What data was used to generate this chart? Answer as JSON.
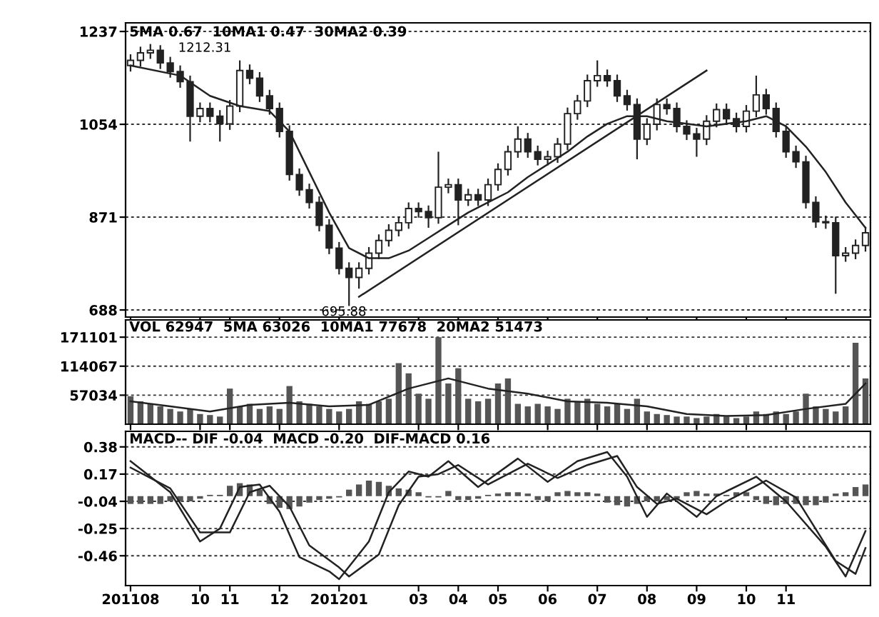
{
  "chart_data": [
    {
      "type": "candlestick",
      "color": "#222222",
      "categories": [
        "201108",
        null,
        null,
        null,
        null,
        null,
        null,
        "10",
        null,
        null,
        "11",
        null,
        null,
        null,
        null,
        "12",
        null,
        null,
        null,
        null,
        null,
        "201201",
        null,
        null,
        null,
        null,
        null,
        null,
        null,
        "03",
        null,
        null,
        null,
        "04",
        null,
        null,
        null,
        "05",
        null,
        null,
        null,
        null,
        "06",
        null,
        null,
        null,
        null,
        "07",
        null,
        null,
        null,
        null,
        "08",
        null,
        null,
        null,
        null,
        "09",
        null,
        null,
        null,
        null,
        "10",
        null,
        null,
        null,
        "11",
        null,
        null,
        null,
        null,
        null,
        null,
        null,
        null
      ],
      "ohlc": [
        [
          1170,
          1192,
          1158,
          1180
        ],
        [
          1180,
          1207,
          1168,
          1195
        ],
        [
          1195,
          1212.31,
          1183,
          1200
        ],
        [
          1200,
          1210,
          1163,
          1175
        ],
        [
          1175,
          1187,
          1146,
          1158
        ],
        [
          1158,
          1170,
          1126,
          1138
        ],
        [
          1138,
          1150,
          1020,
          1070
        ],
        [
          1070,
          1097,
          1058,
          1085
        ],
        [
          1085,
          1097,
          1058,
          1070
        ],
        [
          1070,
          1082,
          1020,
          1055
        ],
        [
          1055,
          1102,
          1043,
          1090
        ],
        [
          1090,
          1180,
          1078,
          1160
        ],
        [
          1160,
          1172,
          1133,
          1145
        ],
        [
          1145,
          1157,
          1098,
          1110
        ],
        [
          1110,
          1122,
          1073,
          1085
        ],
        [
          1085,
          1097,
          1028,
          1040
        ],
        [
          1040,
          1052,
          943,
          955
        ],
        [
          955,
          967,
          913,
          925
        ],
        [
          925,
          937,
          888,
          900
        ],
        [
          900,
          912,
          843,
          855
        ],
        [
          855,
          867,
          798,
          810
        ],
        [
          810,
          822,
          758,
          770
        ],
        [
          770,
          782,
          695.88,
          752
        ],
        [
          752,
          782,
          730,
          770
        ],
        [
          770,
          812,
          758,
          800
        ],
        [
          800,
          837,
          788,
          825
        ],
        [
          825,
          857,
          813,
          845
        ],
        [
          845,
          872,
          833,
          860
        ],
        [
          860,
          900,
          848,
          888
        ],
        [
          888,
          900,
          870,
          882
        ],
        [
          882,
          894,
          850,
          870
        ],
        [
          870,
          1000,
          858,
          930
        ],
        [
          930,
          947,
          918,
          935
        ],
        [
          935,
          947,
          855,
          905
        ],
        [
          905,
          927,
          893,
          915
        ],
        [
          915,
          927,
          893,
          905
        ],
        [
          905,
          947,
          893,
          935
        ],
        [
          935,
          977,
          923,
          965
        ],
        [
          965,
          1012,
          953,
          1000
        ],
        [
          1000,
          1050,
          988,
          1025
        ],
        [
          1025,
          1037,
          988,
          1000
        ],
        [
          1000,
          1012,
          973,
          985
        ],
        [
          985,
          1002,
          973,
          990
        ],
        [
          990,
          1027,
          978,
          1015
        ],
        [
          1015,
          1087,
          1003,
          1075
        ],
        [
          1075,
          1112,
          1063,
          1100
        ],
        [
          1100,
          1152,
          1088,
          1140
        ],
        [
          1140,
          1180,
          1128,
          1150
        ],
        [
          1150,
          1162,
          1128,
          1140
        ],
        [
          1140,
          1152,
          1098,
          1110
        ],
        [
          1110,
          1122,
          1081,
          1093
        ],
        [
          1093,
          1105,
          985,
          1025
        ],
        [
          1025,
          1066,
          1013,
          1054
        ],
        [
          1054,
          1105,
          1042,
          1093
        ],
        [
          1093,
          1105,
          1073,
          1085
        ],
        [
          1085,
          1097,
          1038,
          1050
        ],
        [
          1050,
          1062,
          1023,
          1035
        ],
        [
          1035,
          1047,
          990,
          1025
        ],
        [
          1025,
          1072,
          1013,
          1060
        ],
        [
          1060,
          1095,
          1048,
          1083
        ],
        [
          1083,
          1095,
          1053,
          1065
        ],
        [
          1065,
          1077,
          1038,
          1050
        ],
        [
          1050,
          1092,
          1038,
          1080
        ],
        [
          1080,
          1150,
          1068,
          1112
        ],
        [
          1112,
          1124,
          1073,
          1085
        ],
        [
          1085,
          1097,
          1028,
          1040
        ],
        [
          1040,
          1052,
          988,
          1000
        ],
        [
          1000,
          1012,
          968,
          980
        ],
        [
          980,
          992,
          888,
          900
        ],
        [
          900,
          912,
          850,
          862
        ],
        [
          862,
          874,
          848,
          860
        ],
        [
          860,
          872,
          720,
          795
        ],
        [
          795,
          812,
          783,
          800
        ],
        [
          800,
          827,
          788,
          815
        ],
        [
          815,
          852,
          803,
          840
        ]
      ],
      "series": [
        {
          "type": "line",
          "color": "#222222",
          "values": [
            1170,
            null,
            null,
            null,
            null,
            1150,
            null,
            null,
            1110,
            null,
            null,
            1090,
            null,
            null,
            1080,
            null,
            1040,
            null,
            960,
            null,
            880,
            null,
            810,
            null,
            790,
            null,
            790,
            null,
            805,
            null,
            830,
            null,
            855,
            null,
            880,
            null,
            900,
            null,
            920,
            null,
            950,
            null,
            975,
            null,
            1000,
            null,
            1030,
            null,
            1055,
            null,
            1070,
            null,
            1070,
            null,
            1060,
            null,
            1055,
            null,
            1050,
            null,
            1055,
            null,
            1060,
            null,
            1070,
            null,
            1050,
            null,
            1010,
            null,
            960,
            null,
            900,
            null,
            850
          ]
        },
        {
          "type": "line",
          "color": "#222222",
          "values": [
            null,
            null,
            null,
            null,
            null,
            null,
            null,
            null,
            null,
            null,
            null,
            null,
            null,
            null,
            null,
            null,
            null,
            null,
            null,
            null,
            null,
            null,
            null,
            714,
            null,
            null,
            null,
            null,
            null,
            null,
            null,
            null,
            null,
            null,
            null,
            null,
            null,
            null,
            null,
            null,
            null,
            null,
            null,
            null,
            null,
            null,
            null,
            null,
            null,
            null,
            null,
            null,
            null,
            null,
            null,
            null,
            null,
            null,
            1160,
            null,
            null,
            null,
            null,
            null,
            null,
            null,
            null,
            null,
            null,
            null,
            null,
            null,
            null,
            null,
            null
          ]
        }
      ],
      "ylim": [
        674,
        1254
      ],
      "yticks": [
        688,
        871,
        1054,
        1237
      ],
      "grid": "y",
      "tick_labels": "y",
      "annotations": [
        "5MA 0.67  10MA1 0.47  30MA2 0.39",
        "1212.31",
        "695.88"
      ]
    },
    {
      "type": "bar",
      "color": "#555555",
      "categories": [
        "201108",
        null,
        null,
        null,
        null,
        null,
        null,
        "10",
        null,
        null,
        "11",
        null,
        null,
        null,
        null,
        "12",
        null,
        null,
        null,
        null,
        null,
        "201201",
        null,
        null,
        null,
        null,
        null,
        null,
        null,
        "03",
        null,
        null,
        null,
        "04",
        null,
        null,
        null,
        "05",
        null,
        null,
        null,
        null,
        "06",
        null,
        null,
        null,
        null,
        "07",
        null,
        null,
        null,
        null,
        "08",
        null,
        null,
        null,
        null,
        "09",
        null,
        null,
        null,
        null,
        "10",
        null,
        null,
        null,
        "11",
        null,
        null,
        null,
        null,
        null,
        null,
        null,
        null
      ],
      "values": [
        55000,
        45000,
        40000,
        35000,
        30000,
        25000,
        30000,
        20000,
        18000,
        15000,
        70000,
        35000,
        40000,
        30000,
        35000,
        30000,
        75000,
        45000,
        40000,
        35000,
        30000,
        25000,
        30000,
        45000,
        40000,
        45000,
        50000,
        120000,
        100000,
        60000,
        50000,
        171000,
        80000,
        110000,
        50000,
        45000,
        50000,
        80000,
        90000,
        40000,
        35000,
        40000,
        35000,
        30000,
        50000,
        45000,
        50000,
        40000,
        35000,
        40000,
        30000,
        50000,
        25000,
        20000,
        18000,
        15000,
        15000,
        12000,
        15000,
        20000,
        15000,
        12000,
        15000,
        25000,
        20000,
        25000,
        20000,
        25000,
        60000,
        35000,
        30000,
        25000,
        35000,
        160000,
        90000
      ],
      "series": [
        {
          "type": "line",
          "color": "#222222",
          "values": [
            45000,
            null,
            null,
            null,
            35000,
            null,
            null,
            null,
            25000,
            null,
            null,
            null,
            38000,
            null,
            null,
            null,
            42000,
            null,
            null,
            null,
            35000,
            null,
            null,
            null,
            38000,
            null,
            null,
            null,
            70000,
            null,
            null,
            null,
            90000,
            null,
            null,
            null,
            70000,
            null,
            null,
            null,
            60000,
            null,
            null,
            null,
            45000,
            null,
            null,
            null,
            42000,
            null,
            null,
            null,
            35000,
            null,
            null,
            null,
            20000,
            null,
            null,
            null,
            16000,
            null,
            null,
            null,
            18000,
            null,
            null,
            null,
            30000,
            null,
            null,
            null,
            40000,
            null,
            80000
          ]
        }
      ],
      "ylim": [
        0,
        205000
      ],
      "yticks": [
        57034,
        114067,
        171101
      ],
      "grid": "y",
      "tick_labels": "y",
      "annotations": [
        "VOL 62947  5MA 63026  10MA1 77678  20MA2 51473"
      ]
    },
    {
      "type": "bar",
      "color": "#555555",
      "categories": [
        "201108",
        null,
        null,
        null,
        null,
        null,
        null,
        "10",
        null,
        null,
        "11",
        null,
        null,
        null,
        null,
        "12",
        null,
        null,
        null,
        null,
        null,
        "201201",
        null,
        null,
        null,
        null,
        null,
        null,
        null,
        "03",
        null,
        null,
        null,
        "04",
        null,
        null,
        null,
        "05",
        null,
        null,
        null,
        null,
        "06",
        null,
        null,
        null,
        null,
        "07",
        null,
        null,
        null,
        null,
        "08",
        null,
        null,
        null,
        null,
        "09",
        null,
        null,
        null,
        null,
        "10",
        null,
        null,
        null,
        "11",
        null,
        null,
        null,
        null,
        null,
        null,
        null,
        null
      ],
      "values": [
        -0.06,
        -0.06,
        -0.06,
        -0.06,
        -0.04,
        -0.04,
        -0.04,
        -0.02,
        0.01,
        0.01,
        0.08,
        0.1,
        0.09,
        0.05,
        -0.06,
        -0.09,
        -0.1,
        -0.08,
        -0.05,
        -0.03,
        -0.02,
        -0.01,
        0.05,
        0.09,
        0.12,
        0.11,
        0.08,
        0.06,
        0.05,
        0.03,
        -0.01,
        -0.01,
        0.04,
        -0.03,
        -0.03,
        -0.02,
        0.01,
        0.02,
        0.03,
        0.03,
        0.02,
        -0.03,
        -0.04,
        0.03,
        0.04,
        0.03,
        0.03,
        0.02,
        -0.05,
        -0.07,
        -0.08,
        -0.06,
        -0.04,
        -0.04,
        -0.03,
        -0.02,
        0.03,
        0.04,
        0.02,
        0.02,
        0.01,
        0.03,
        0.03,
        -0.03,
        -0.06,
        -0.07,
        -0.06,
        -0.06,
        -0.07,
        -0.07,
        -0.05,
        0.02,
        0.03,
        0.07,
        0.09
      ],
      "series": [
        {
          "type": "line",
          "color": "#222222",
          "values": [
            0.27,
            null,
            null,
            null,
            0.03,
            null,
            null,
            -0.35,
            null,
            -0.25,
            null,
            0.07,
            null,
            0.09,
            null,
            -0.12,
            null,
            -0.47,
            null,
            null,
            -0.58,
            -0.64,
            null,
            null,
            -0.35,
            null,
            0.03,
            null,
            0.19,
            null,
            0.15,
            null,
            0.27,
            null,
            null,
            0.07,
            null,
            null,
            null,
            0.29,
            null,
            null,
            0.11,
            null,
            null,
            0.27,
            null,
            null,
            0.34,
            null,
            0.15,
            null,
            -0.16,
            null,
            0.02,
            null,
            null,
            -0.16,
            null,
            0.0,
            null,
            null,
            null,
            0.15,
            null,
            null,
            -0.04,
            null,
            null,
            null,
            -0.39,
            null,
            -0.62,
            null,
            -0.27
          ]
        },
        {
          "type": "line",
          "color": "#222222",
          "values": [
            0.22,
            null,
            null,
            null,
            0.06,
            null,
            null,
            -0.28,
            null,
            null,
            -0.28,
            null,
            0.03,
            null,
            0.08,
            null,
            -0.08,
            null,
            -0.38,
            null,
            null,
            -0.55,
            -0.62,
            null,
            null,
            -0.45,
            null,
            -0.07,
            null,
            0.15,
            null,
            0.17,
            null,
            0.24,
            null,
            null,
            0.09,
            null,
            null,
            null,
            0.25,
            null,
            null,
            0.14,
            null,
            null,
            0.24,
            null,
            null,
            0.31,
            null,
            0.07,
            null,
            -0.06,
            null,
            -0.02,
            null,
            null,
            -0.14,
            null,
            -0.04,
            null,
            null,
            null,
            0.12,
            null,
            null,
            -0.01,
            null,
            null,
            null,
            -0.5,
            null,
            -0.6,
            -0.4
          ]
        }
      ],
      "ylim": [
        -0.69,
        0.5
      ],
      "yticks": [
        0.38,
        0.17,
        -0.04,
        -0.25,
        -0.46
      ],
      "grid": "y",
      "annotations": [
        "MACD-- DIF -0.04  MACD -0.20  DIF-MACD 0.16"
      ]
    }
  ]
}
